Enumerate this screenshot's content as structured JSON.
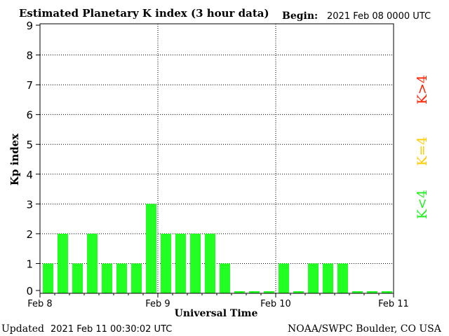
{
  "header": {
    "title": "Estimated Planetary K index (3 hour data)",
    "begin_label": "Begin:",
    "begin_value": "2021 Feb 08 0000 UTC"
  },
  "footer": {
    "updated_label": "Updated",
    "updated_value": "2021 Feb 11 00:30:02 UTC",
    "credit": "NOAA/SWPC Boulder, CO USA"
  },
  "legend": {
    "high": {
      "label": "K>4",
      "color": "#ff2200"
    },
    "equal": {
      "label": "K=4",
      "color": "#ffcc00"
    },
    "low": {
      "label": "K<4",
      "color": "#22ee22"
    }
  },
  "chart_data": {
    "type": "bar",
    "xlabel": "Universal Time",
    "ylabel": "Kp index",
    "ylim": [
      0,
      9
    ],
    "yticks": [
      "0",
      "1",
      "2",
      "3",
      "4",
      "5",
      "6",
      "7",
      "8",
      "9"
    ],
    "xticks": [
      "Feb 8",
      "Feb 9",
      "Feb 10",
      "Feb 11"
    ],
    "grid": "dotted, horizontal at 1–8, vertical at day boundaries",
    "bar_color": "#22ff22",
    "values": [
      1,
      2,
      1,
      2,
      1,
      1,
      1,
      3,
      2,
      2,
      2,
      2,
      1,
      0,
      0,
      0,
      1,
      0,
      1,
      1,
      1,
      0,
      0,
      0
    ]
  }
}
